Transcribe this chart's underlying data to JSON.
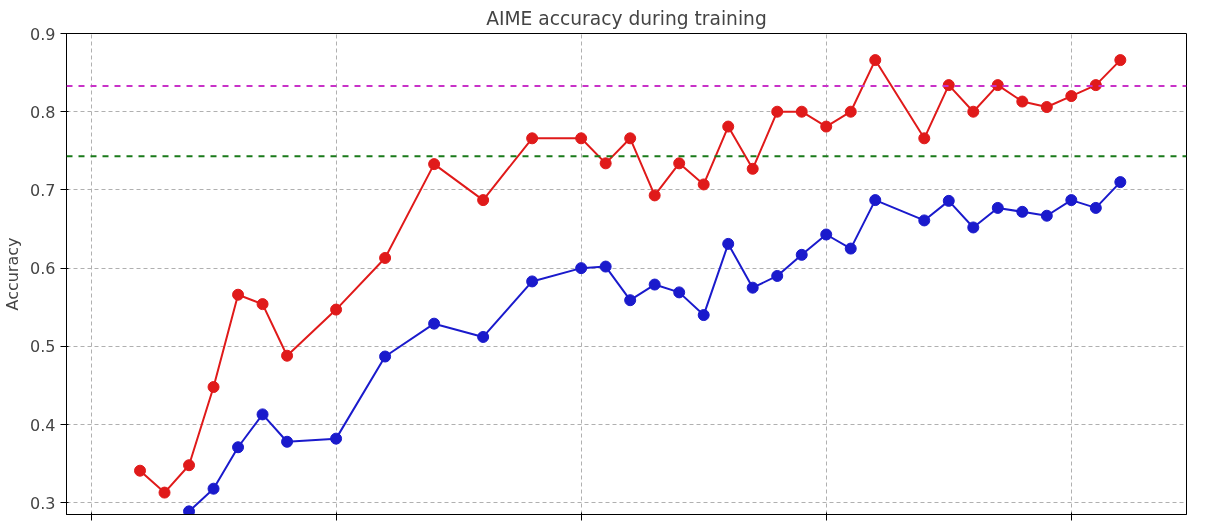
{
  "chart_data": {
    "type": "line",
    "title": "AIME accuracy during training",
    "ylabel": "Accuracy",
    "categories": [
      null,
      null,
      null,
      null,
      null,
      null,
      null,
      null,
      null,
      null,
      null,
      null,
      null,
      null,
      null,
      null,
      null,
      null,
      null,
      null,
      null,
      null,
      null,
      null,
      null,
      null,
      null,
      null,
      null,
      null,
      null,
      null,
      null,
      null,
      null,
      null,
      null,
      null,
      null,
      null,
      null
    ],
    "ylim": [
      0.285,
      0.9
    ],
    "yticks": [
      0.3,
      0.4,
      0.5,
      0.6,
      0.7,
      0.8,
      0.9
    ],
    "tick_labels": "y",
    "grid": true,
    "marker": "circle",
    "line_style": "solid",
    "series": [
      {
        "color": "#e01a1a",
        "values": [
          0.341,
          0.313,
          0.348,
          0.448,
          0.566,
          0.554,
          0.488,
          null,
          0.547,
          null,
          0.613,
          null,
          0.733,
          null,
          0.687,
          null,
          0.766,
          null,
          0.766,
          0.734,
          0.766,
          0.693,
          0.734,
          0.707,
          0.781,
          0.727,
          0.8,
          0.8,
          0.781,
          0.8,
          0.866,
          null,
          0.766,
          0.834,
          0.8,
          0.834,
          0.813,
          0.806,
          0.82,
          0.834,
          0.866
        ]
      },
      {
        "color": "#1a1acc",
        "values": [
          null,
          null,
          0.289,
          0.318,
          0.371,
          0.413,
          0.378,
          null,
          0.382,
          null,
          0.487,
          null,
          0.529,
          null,
          0.512,
          null,
          0.583,
          null,
          0.6,
          0.602,
          0.559,
          0.579,
          0.569,
          0.54,
          0.631,
          0.575,
          0.59,
          0.617,
          0.643,
          0.625,
          0.687,
          null,
          0.661,
          0.686,
          0.652,
          0.677,
          0.672,
          0.667,
          0.687,
          0.677,
          0.71
        ]
      }
    ],
    "ref_lines": [
      {
        "axis": "y",
        "value": 0.833,
        "color": "#c832c8",
        "line_style": "dashed"
      },
      {
        "axis": "y",
        "value": 0.743,
        "color": "#1a7a1a",
        "line_style": "dashed"
      }
    ]
  }
}
